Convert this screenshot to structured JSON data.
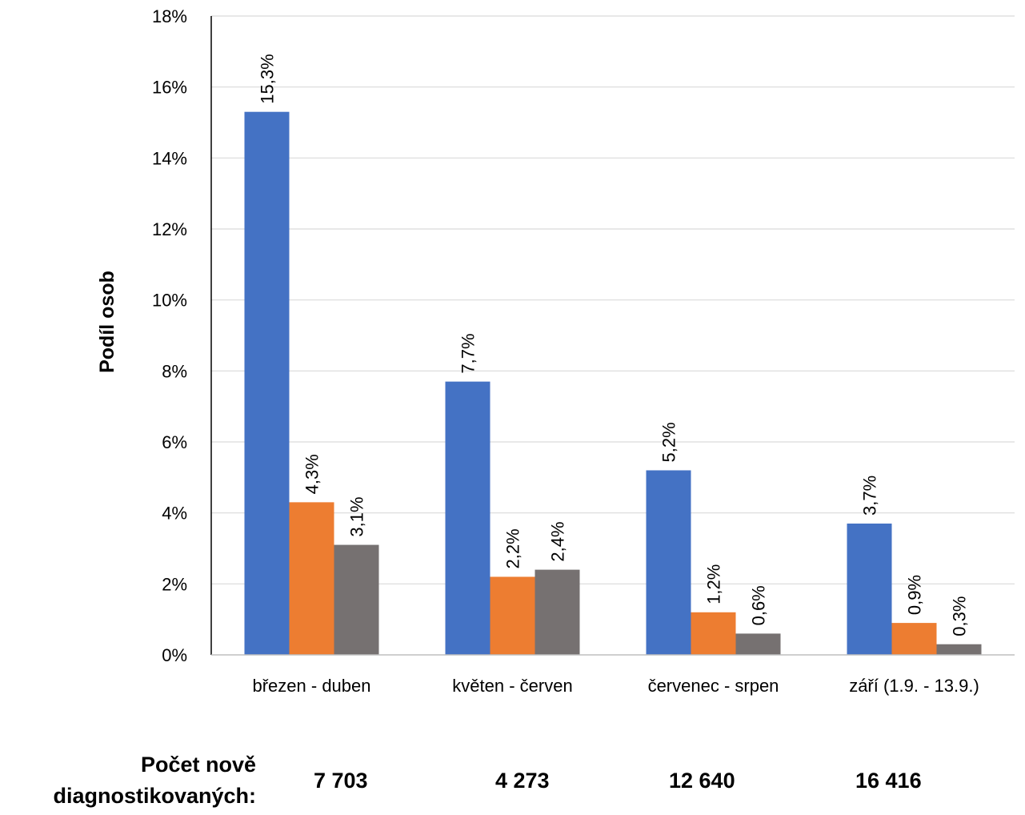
{
  "chart_data": {
    "type": "bar",
    "categories": [
      "březen - duben",
      "květen - červen",
      "červenec - srpen",
      "září (1.9. - 13.9.)"
    ],
    "series": [
      {
        "values": [
          15.3,
          7.7,
          5.2,
          3.7
        ],
        "labels": [
          "15,3%",
          "7,7%",
          "5,2%",
          "3,7%"
        ],
        "color": "#4472C4"
      },
      {
        "values": [
          4.3,
          2.2,
          1.2,
          0.9
        ],
        "labels": [
          "4,3%",
          "2,2%",
          "1,2%",
          "0,9%"
        ],
        "color": "#ED7D31"
      },
      {
        "values": [
          3.1,
          2.4,
          0.6,
          0.3
        ],
        "labels": [
          "3,1%",
          "2,4%",
          "0,6%",
          "0,3%"
        ],
        "color": "#767171"
      }
    ],
    "ylabel": "Podíl osob",
    "xlabel": "",
    "ylim": [
      0,
      18
    ],
    "yticks": [
      0,
      2,
      4,
      6,
      8,
      10,
      12,
      14,
      16,
      18
    ],
    "ytick_labels": [
      "0%",
      "2%",
      "4%",
      "6%",
      "8%",
      "10%",
      "12%",
      "14%",
      "16%",
      "18%"
    ],
    "grid": true,
    "legend": "none"
  },
  "footer": {
    "label_line1": "Počet nově",
    "label_line2": "diagnostikovaných:",
    "counts": [
      "7 703",
      "4 273",
      "12 640",
      "16 416"
    ]
  }
}
